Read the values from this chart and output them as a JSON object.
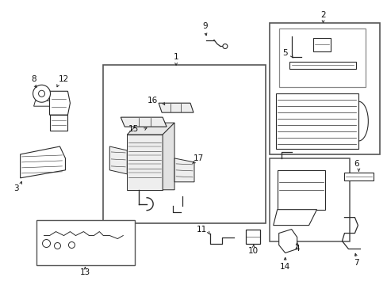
{
  "bg_color": "#ffffff",
  "lc": "#2a2a2a",
  "bc": "#2a2a2a",
  "label_color": "#111111",
  "figsize": [
    4.89,
    3.6
  ],
  "dpi": 100,
  "fs": 6.5
}
